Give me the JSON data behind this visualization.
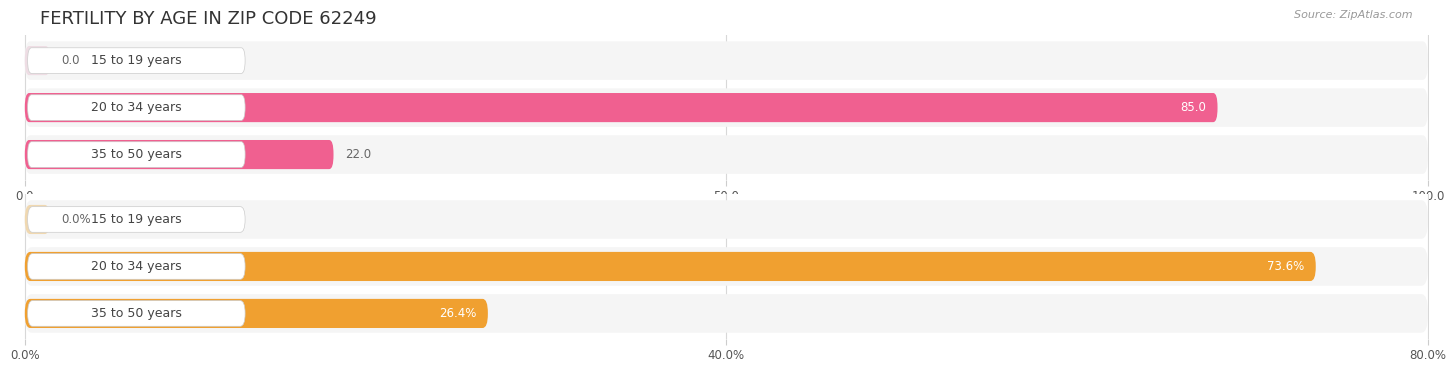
{
  "title": "FERTILITY BY AGE IN ZIP CODE 62249",
  "source": "Source: ZipAtlas.com",
  "top_bars": {
    "categories": [
      "15 to 19 years",
      "20 to 34 years",
      "35 to 50 years"
    ],
    "values": [
      0.0,
      85.0,
      22.0
    ],
    "xlim": [
      0,
      100
    ],
    "xticks": [
      0.0,
      50.0,
      100.0
    ],
    "bar_color": "#f06090",
    "bar_bg_color": "#eedde4",
    "row_bg_color": "#f5f5f5",
    "label_inside_color": "#ffffff",
    "label_outside_color": "#666666"
  },
  "bottom_bars": {
    "categories": [
      "15 to 19 years",
      "20 to 34 years",
      "35 to 50 years"
    ],
    "values": [
      0.0,
      73.6,
      26.4
    ],
    "xlim": [
      0,
      80
    ],
    "xticks": [
      0.0,
      40.0,
      80.0
    ],
    "bar_color": "#f0a030",
    "bar_bg_color": "#f0d8b0",
    "row_bg_color": "#f5f5f5",
    "label_inside_color": "#ffffff",
    "label_outside_color": "#666666"
  },
  "fig_width": 14.06,
  "fig_height": 3.31,
  "bg_color": "#ffffff",
  "title_fontsize": 13,
  "tick_fontsize": 8.5,
  "bar_label_fontsize": 8.5,
  "category_fontsize": 9
}
